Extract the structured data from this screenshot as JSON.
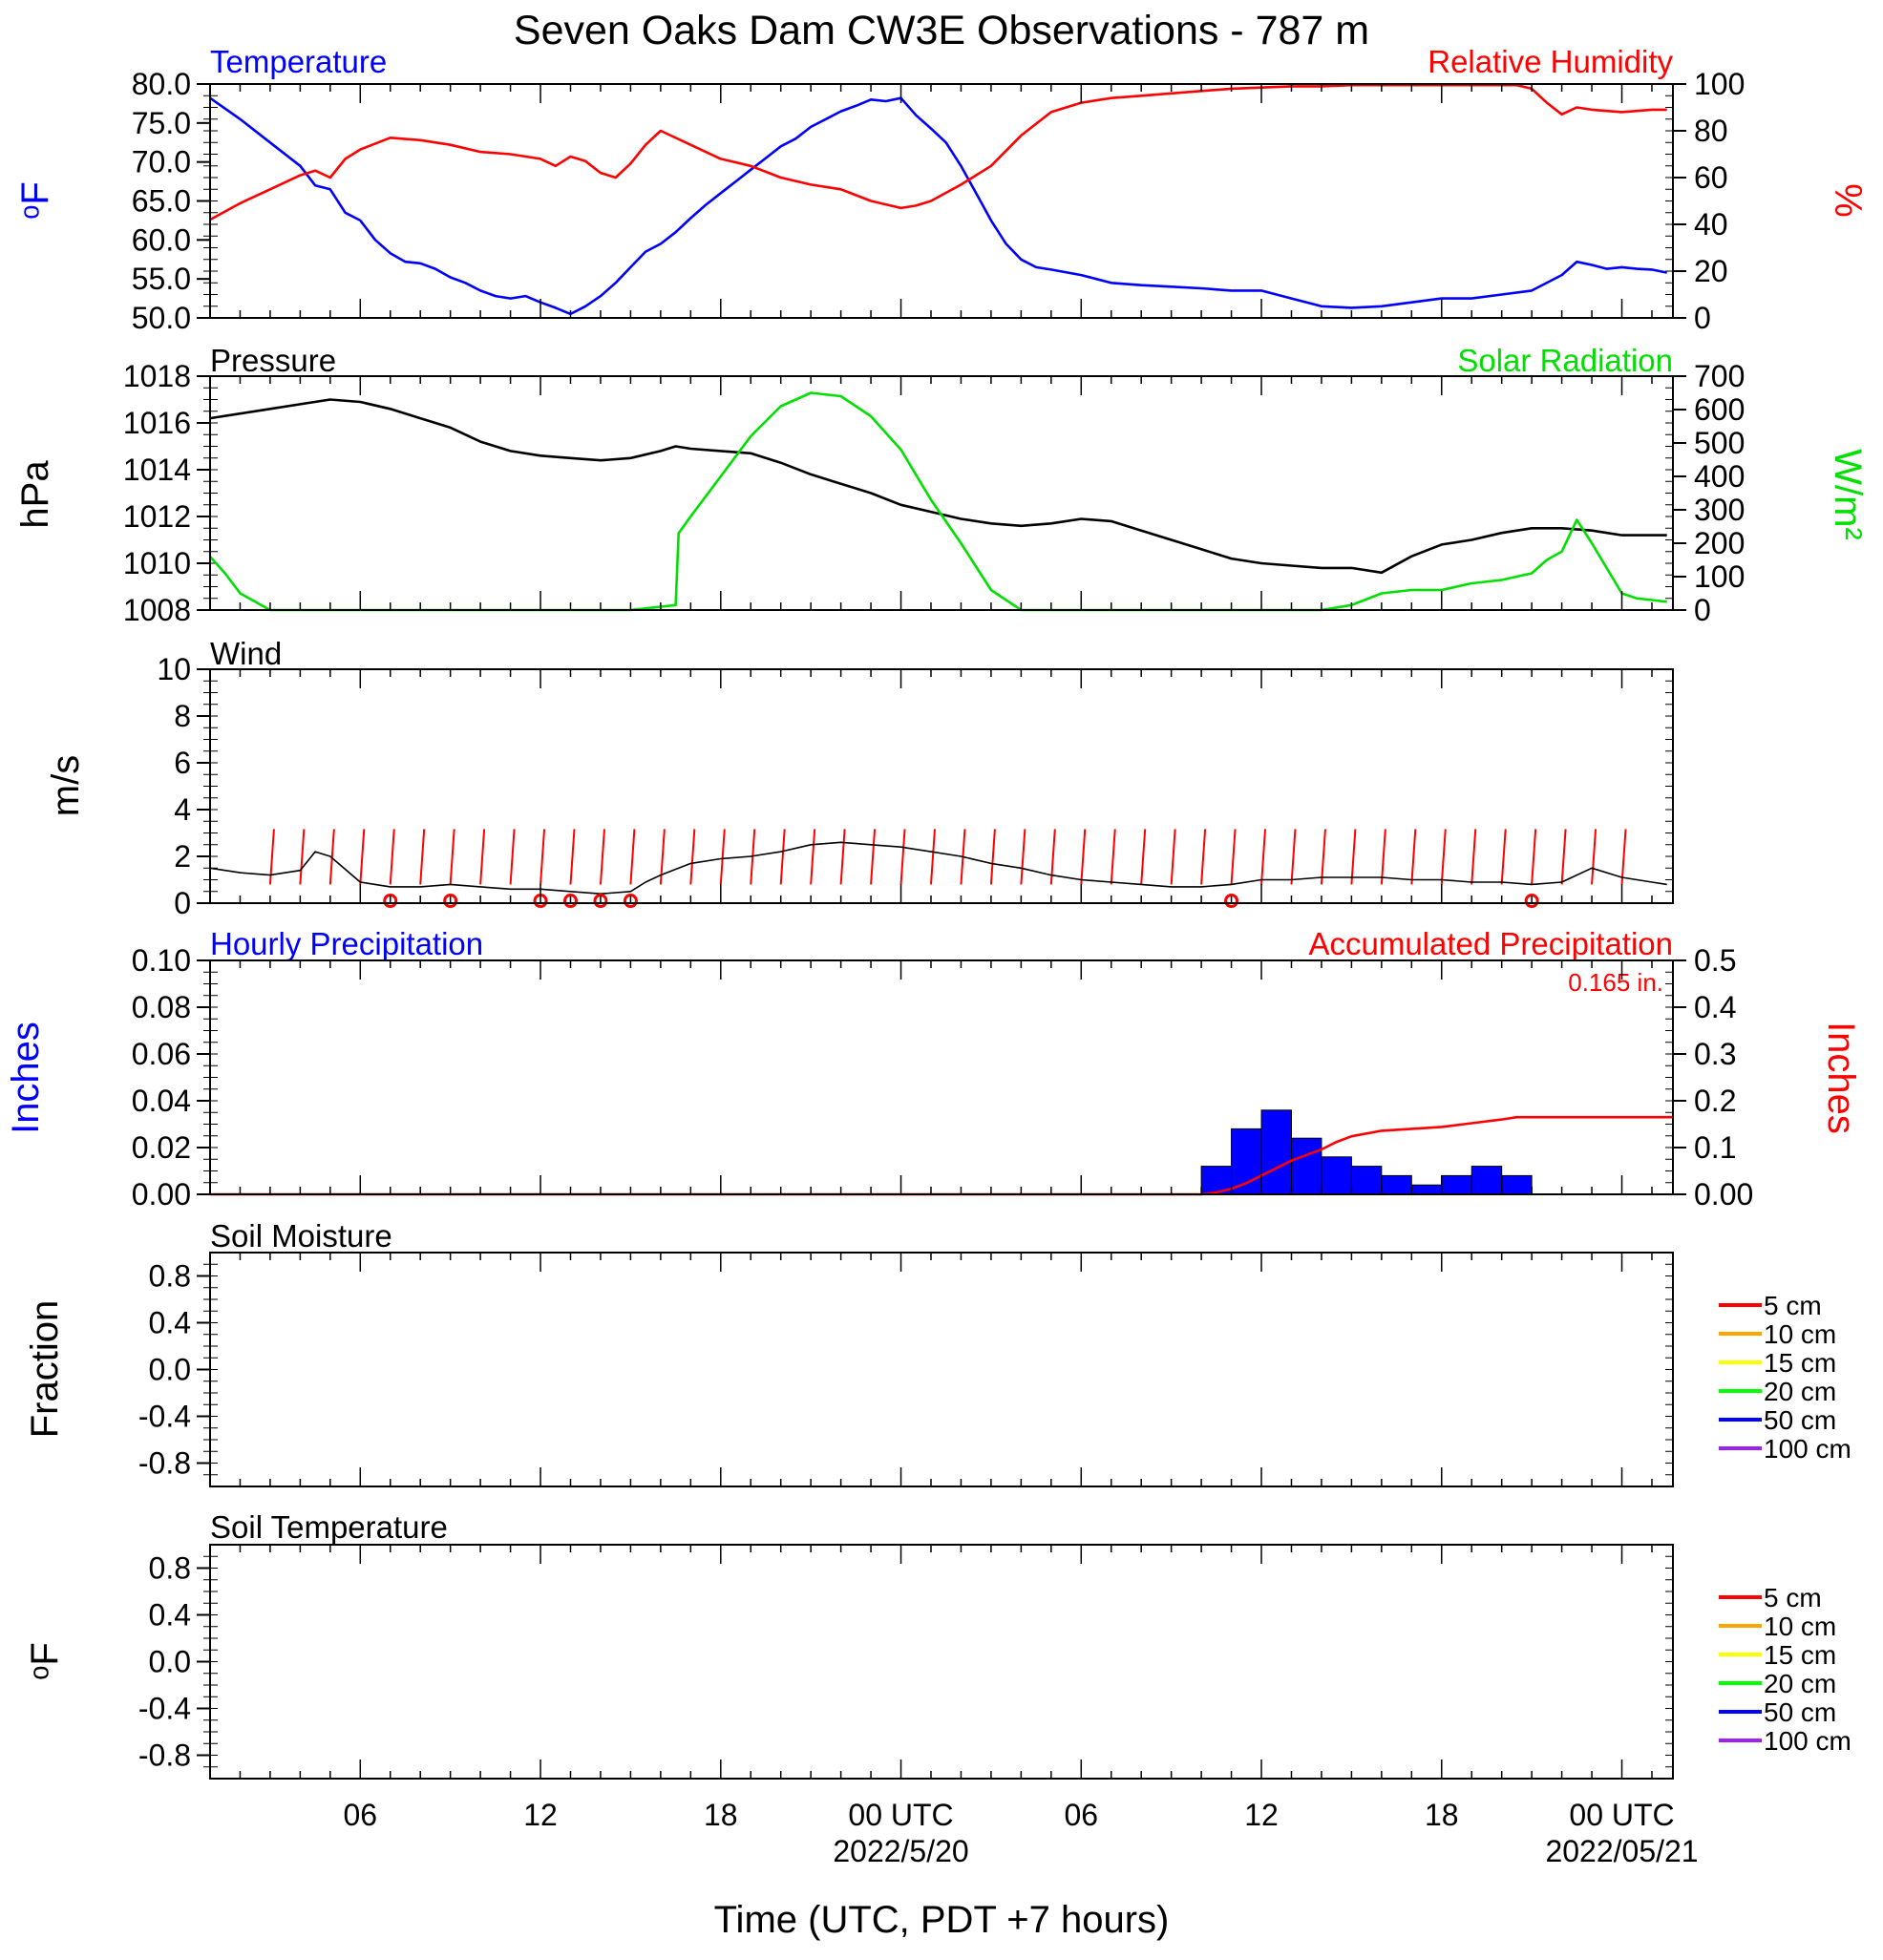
{
  "title": "Seven Oaks Dam CW3E Observations - 787 m",
  "xlabel": "Time (UTC, PDT +7 hours)",
  "colors": {
    "temperature": "#0000ff",
    "humidity": "#ff0000",
    "pressure": "#000000",
    "solar": "#00e000",
    "wind": "#000000",
    "barb": "#ff0000",
    "precip_bar": "#0000ff",
    "precip_accum": "#ff0000"
  },
  "x_axis": {
    "range_hours": [
      0,
      48.7
    ],
    "ticks": [
      {
        "hour": 5,
        "label": "06",
        "date": ""
      },
      {
        "hour": 11,
        "label": "12",
        "date": ""
      },
      {
        "hour": 17,
        "label": "18",
        "date": ""
      },
      {
        "hour": 23,
        "label": "00 UTC",
        "date": "2022/5/20"
      },
      {
        "hour": 29,
        "label": "06",
        "date": ""
      },
      {
        "hour": 35,
        "label": "12",
        "date": ""
      },
      {
        "hour": 41,
        "label": "18",
        "date": ""
      },
      {
        "hour": 47,
        "label": "00 UTC",
        "date": "2022/05/21"
      }
    ]
  },
  "chart_data": [
    {
      "type": "line",
      "left_title": "Temperature",
      "right_title": "Relative Humidity",
      "ylabel": "oF",
      "ylabel_right": "%",
      "ylim": [
        50,
        80
      ],
      "ylim_right": [
        0,
        100
      ],
      "yticks": [
        "80.0",
        "75.0",
        "70.0",
        "65.0",
        "60.0",
        "55.0",
        "50.0"
      ],
      "yticks_right": [
        "100",
        "80",
        "60",
        "40",
        "20",
        "0"
      ],
      "series": [
        {
          "name": "Temperature",
          "axis": "left",
          "x": [
            0,
            1,
            2,
            3,
            3.5,
            4,
            4.5,
            5,
            5.5,
            6,
            6.5,
            7,
            7.5,
            8,
            8.5,
            9,
            9.5,
            10,
            10.5,
            11,
            11.5,
            12,
            12.5,
            13,
            13.5,
            14,
            14.5,
            15,
            15.5,
            16,
            16.5,
            17,
            17.5,
            18,
            18.5,
            19,
            19.5,
            20,
            20.5,
            21,
            21.5,
            22,
            22.5,
            23,
            23.5,
            24,
            24.5,
            25,
            25.5,
            26,
            26.5,
            27,
            27.5,
            28,
            29,
            30,
            31,
            32,
            33,
            34,
            35,
            36,
            37,
            38,
            39,
            40,
            41,
            42,
            43,
            44,
            45,
            45.5,
            46,
            46.5,
            47,
            47.5,
            48,
            48.5
          ],
          "y": [
            78.2,
            75.5,
            72.5,
            69.5,
            67,
            66.5,
            63.5,
            62.5,
            60,
            58.3,
            57.2,
            57,
            56.3,
            55.2,
            54.5,
            53.5,
            52.8,
            52.5,
            52.8,
            52,
            51.3,
            50.5,
            51.5,
            52.8,
            54.5,
            56.5,
            58.5,
            59.5,
            61,
            62.8,
            64.5,
            66,
            67.5,
            69,
            70.5,
            72,
            73,
            74.5,
            75.5,
            76.5,
            77.2,
            78,
            77.8,
            78.2,
            76,
            74.3,
            72.5,
            69.5,
            66,
            62.5,
            59.5,
            57.5,
            56.5,
            56.2,
            55.5,
            54.5,
            54.2,
            54,
            53.8,
            53.5,
            53.5,
            52.5,
            51.5,
            51.3,
            51.5,
            52,
            52.5,
            52.5,
            53,
            53.5,
            55.5,
            57.2,
            56.8,
            56.3,
            56.5,
            56.3,
            56.2,
            55.8
          ]
        },
        {
          "name": "Relative Humidity",
          "axis": "right",
          "x": [
            0,
            1,
            2,
            3,
            3.5,
            4,
            4.5,
            5,
            6,
            7,
            8,
            9,
            10,
            11,
            11.5,
            12,
            12.5,
            13,
            13.5,
            14,
            14.5,
            15,
            16,
            17,
            18,
            19,
            20,
            21,
            22,
            23,
            23.5,
            24,
            25,
            26,
            27,
            28,
            29,
            30,
            31,
            32,
            33,
            34,
            35,
            36,
            37,
            38,
            39,
            40,
            41,
            42,
            43,
            43.5,
            44,
            44.5,
            45,
            45.5,
            46,
            47,
            48,
            48.5
          ],
          "y": [
            42,
            49,
            55,
            61,
            63,
            60,
            68,
            72,
            77,
            76,
            74,
            71,
            70,
            68,
            65,
            69,
            67,
            62,
            60,
            66,
            74,
            80,
            74,
            68,
            65,
            60,
            57,
            55,
            50,
            47,
            48,
            50,
            57,
            65,
            78,
            88,
            92,
            94,
            95,
            96,
            97,
            98,
            98.5,
            99,
            99,
            99.5,
            99.5,
            99.5,
            99.5,
            99.5,
            99.5,
            99.5,
            98,
            92,
            87,
            90,
            89,
            88,
            89,
            89
          ]
        }
      ]
    },
    {
      "type": "line",
      "left_title": "Pressure",
      "right_title": "Solar Radiation",
      "ylabel": "hPa",
      "ylabel_right": "W/m2",
      "ylim": [
        1008,
        1018
      ],
      "ylim_right": [
        0,
        700
      ],
      "yticks": [
        "1018",
        "1016",
        "1014",
        "1012",
        "1010",
        "1008"
      ],
      "yticks_right": [
        "700",
        "600",
        "500",
        "400",
        "300",
        "200",
        "100",
        "0"
      ],
      "series": [
        {
          "name": "Pressure",
          "axis": "left",
          "x": [
            0,
            1,
            2,
            3,
            4,
            5,
            6,
            7,
            8,
            9,
            10,
            11,
            12,
            13,
            14,
            15,
            15.5,
            16,
            17,
            18,
            19,
            20,
            21,
            22,
            23,
            24,
            25,
            26,
            27,
            28,
            29,
            30,
            31,
            32,
            33,
            34,
            35,
            36,
            37,
            38,
            39,
            40,
            41,
            42,
            43,
            44,
            45,
            46,
            47,
            48,
            48.5
          ],
          "y": [
            1016.2,
            1016.4,
            1016.6,
            1016.8,
            1017,
            1016.9,
            1016.6,
            1016.2,
            1015.8,
            1015.2,
            1014.8,
            1014.6,
            1014.5,
            1014.4,
            1014.5,
            1014.8,
            1015,
            1014.9,
            1014.8,
            1014.7,
            1014.3,
            1013.8,
            1013.4,
            1013,
            1012.5,
            1012.2,
            1011.9,
            1011.7,
            1011.6,
            1011.7,
            1011.9,
            1011.8,
            1011.4,
            1011,
            1010.6,
            1010.2,
            1010,
            1009.9,
            1009.8,
            1009.8,
            1009.6,
            1010.3,
            1010.8,
            1011,
            1011.3,
            1011.5,
            1011.5,
            1011.4,
            1011.2,
            1011.2,
            1011.2
          ]
        },
        {
          "name": "Solar Radiation",
          "axis": "right",
          "x": [
            0,
            0.5,
            1,
            1.5,
            2,
            14,
            15.5,
            15.6,
            16,
            17,
            18,
            19,
            20,
            21,
            22,
            23,
            24,
            25,
            26,
            27,
            28,
            29,
            30,
            34,
            35,
            37,
            38,
            39,
            40,
            41,
            42,
            43,
            44,
            44.5,
            45,
            45.5,
            46,
            47,
            47.5,
            48,
            48.5
          ],
          "y": [
            160,
            110,
            50,
            25,
            0,
            0,
            15,
            230,
            280,
            400,
            520,
            610,
            650,
            640,
            580,
            480,
            330,
            200,
            60,
            0,
            0,
            0,
            0,
            0,
            0,
            0,
            15,
            50,
            60,
            60,
            80,
            90,
            110,
            150,
            175,
            270,
            200,
            50,
            35,
            30,
            25
          ]
        }
      ]
    },
    {
      "type": "line",
      "left_title": "Wind",
      "ylabel": "m/s",
      "ylim": [
        0,
        10
      ],
      "yticks": [
        "10",
        "8",
        "6",
        "4",
        "2",
        "0"
      ],
      "series": [
        {
          "name": "Wind",
          "axis": "left",
          "x": [
            0,
            1,
            2,
            3,
            3.5,
            4,
            5,
            6,
            7,
            8,
            9,
            10,
            11,
            12,
            13,
            14,
            14.5,
            15,
            16,
            17,
            18,
            19,
            20,
            21,
            22,
            23,
            24,
            25,
            26,
            27,
            28,
            29,
            30,
            31,
            32,
            33,
            34,
            35,
            36,
            37,
            38,
            39,
            40,
            41,
            42,
            43,
            44,
            45,
            45.5,
            46,
            47,
            48,
            48.5
          ],
          "y": [
            1.5,
            1.3,
            1.2,
            1.4,
            2.2,
            2.0,
            0.9,
            0.7,
            0.7,
            0.8,
            0.7,
            0.6,
            0.6,
            0.5,
            0.4,
            0.5,
            0.9,
            1.2,
            1.7,
            1.9,
            2.0,
            2.2,
            2.5,
            2.6,
            2.5,
            2.4,
            2.2,
            2.0,
            1.7,
            1.5,
            1.2,
            1.0,
            0.9,
            0.8,
            0.7,
            0.7,
            0.8,
            1.0,
            1.0,
            1.1,
            1.1,
            1.1,
            1.0,
            1.0,
            0.9,
            0.9,
            0.8,
            0.9,
            1.2,
            1.5,
            1.1,
            0.9,
            0.8
          ]
        }
      ],
      "barbs_hours": [
        2,
        3,
        4,
        5,
        6,
        7,
        8,
        9,
        10,
        11,
        12,
        13,
        14,
        15,
        16,
        17,
        18,
        19,
        20,
        21,
        22,
        23,
        24,
        25,
        26,
        27,
        28,
        29,
        30,
        31,
        32,
        33,
        34,
        35,
        36,
        37,
        38,
        39,
        40,
        41,
        42,
        43,
        44,
        45,
        46,
        47
      ],
      "calm_hours": [
        6,
        8,
        11,
        12,
        13,
        14,
        34,
        44
      ]
    },
    {
      "type": "bar",
      "left_title": "Hourly Precipitation",
      "right_title": "Accumulated Precipitation",
      "annotation": "0.165 in.",
      "ylabel": "Inches",
      "ylabel_right": "Inches",
      "ylim": [
        0,
        0.1
      ],
      "ylim_right": [
        0,
        0.5
      ],
      "yticks": [
        "0.10",
        "0.08",
        "0.06",
        "0.04",
        "0.02",
        "0.00"
      ],
      "yticks_right": [
        "0.5",
        "0.4",
        "0.3",
        "0.2",
        "0.1",
        "0.00"
      ],
      "categories_hours": [
        33,
        34,
        35,
        36,
        37,
        38,
        39,
        40,
        41,
        42,
        43
      ],
      "values": [
        0.012,
        0.028,
        0.036,
        0.024,
        0.016,
        0.012,
        0.008,
        0.004,
        0.008,
        0.012,
        0.008
      ],
      "series": [
        {
          "name": "Accumulated Precipitation",
          "axis": "right",
          "x": [
            0,
            33,
            33.5,
            34,
            34.5,
            35,
            35.5,
            36,
            36.5,
            37,
            37.5,
            38,
            39,
            40,
            41,
            42,
            43,
            43.5,
            44,
            48.7
          ],
          "y": [
            0,
            0,
            0.004,
            0.012,
            0.024,
            0.04,
            0.056,
            0.072,
            0.084,
            0.096,
            0.112,
            0.124,
            0.136,
            0.14,
            0.144,
            0.152,
            0.16,
            0.165,
            0.165,
            0.165
          ]
        }
      ]
    },
    {
      "type": "line",
      "left_title": "Soil Moisture",
      "ylabel": "Fraction",
      "ylim": [
        -1,
        1
      ],
      "yticks": [
        "0.8",
        "0.4",
        "0.0",
        "-0.4",
        "-0.8"
      ],
      "legend": [
        {
          "label": "5 cm",
          "color": "#ff0000"
        },
        {
          "label": "10 cm",
          "color": "#ffa500"
        },
        {
          "label": "15 cm",
          "color": "#ffff00"
        },
        {
          "label": "20 cm",
          "color": "#00ff00"
        },
        {
          "label": "50 cm",
          "color": "#0000ff"
        },
        {
          "label": "100 cm",
          "color": "#a020f0"
        }
      ]
    },
    {
      "type": "line",
      "left_title": "Soil Temperature",
      "ylabel": "oF",
      "ylim": [
        -1,
        1
      ],
      "yticks": [
        "0.8",
        "0.4",
        "0.0",
        "-0.4",
        "-0.8"
      ],
      "legend": [
        {
          "label": "5 cm",
          "color": "#ff0000"
        },
        {
          "label": "10 cm",
          "color": "#ffa500"
        },
        {
          "label": "15 cm",
          "color": "#ffff00"
        },
        {
          "label": "20 cm",
          "color": "#00ff00"
        },
        {
          "label": "50 cm",
          "color": "#0000ff"
        },
        {
          "label": "100 cm",
          "color": "#a020f0"
        }
      ]
    }
  ]
}
